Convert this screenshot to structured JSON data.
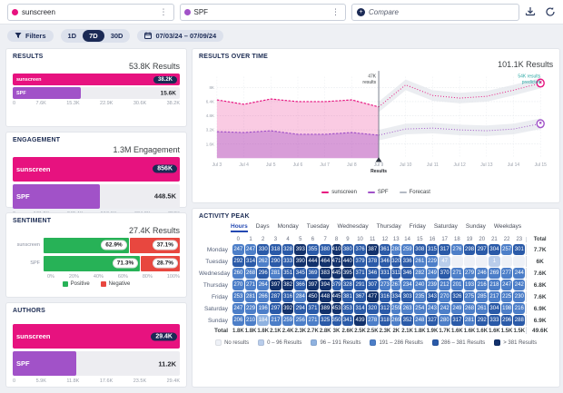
{
  "topbar": {
    "queries": [
      {
        "label": "sunscreen",
        "color": "#e7127f"
      },
      {
        "label": "SPF",
        "color": "#a152c8"
      }
    ],
    "menu_glyph": "⋮",
    "compare": {
      "placeholder": "Compare",
      "icon_glyph": "+"
    }
  },
  "filterbar": {
    "filters_label": "Filters",
    "ranges": [
      "1D",
      "7D",
      "30D"
    ],
    "selected_range": "7D",
    "date_range": "07/03/24 – 07/09/24"
  },
  "results": {
    "title": "RESULTS",
    "total": "53.8K Results",
    "bars": [
      {
        "label": "sunscreen",
        "value": "38.2K",
        "pct": 100,
        "color": "#e7127f",
        "badge": true
      },
      {
        "label": "SPF",
        "value": "15.6K",
        "pct": 41,
        "color": "#a152c8",
        "badge": false
      }
    ],
    "axis": [
      "0",
      "7.6K",
      "15.3K",
      "22.9K",
      "30.6K",
      "38.2K"
    ]
  },
  "engagement": {
    "title": "ENGAGEMENT",
    "total": "1.3M Engagement",
    "bars": [
      {
        "label": "sunscreen",
        "value": "856K",
        "pct": 100,
        "color": "#e7127f",
        "badge": true
      },
      {
        "label": "SPF",
        "value": "448.5K",
        "pct": 52,
        "color": "#a152c8",
        "badge": false
      }
    ],
    "axis": [
      "0",
      "171.2K",
      "342.4K",
      "513.6K",
      "684.8K",
      "856K"
    ]
  },
  "sentiment": {
    "title": "SENTIMENT",
    "total": "27.4K Results",
    "rows": [
      {
        "label": "sunscreen",
        "positive_label": "62.9%",
        "negative_label": "37.1%",
        "positive_pct": 62.9,
        "negative_pct": 37.1
      },
      {
        "label": "SPF",
        "positive_label": "71.3%",
        "negative_label": "28.7%",
        "positive_pct": 71.3,
        "negative_pct": 28.7
      }
    ],
    "axis": [
      "0%",
      "20%",
      "40%",
      "60%",
      "80%",
      "100%"
    ],
    "positive_color": "#27b257",
    "negative_color": "#e8473f",
    "legend": [
      {
        "label": "Positive",
        "color": "#27b257"
      },
      {
        "label": "Negative",
        "color": "#e8473f"
      }
    ]
  },
  "authors": {
    "title": "AUTHORS",
    "total": "",
    "bars": [
      {
        "label": "sunscreen",
        "value": "29.4K",
        "pct": 100,
        "color": "#e7127f",
        "badge": true
      },
      {
        "label": "SPF",
        "value": "11.2K",
        "pct": 38,
        "color": "#a152c8",
        "badge": false
      }
    ],
    "axis": [
      "0",
      "5.9K",
      "11.8K",
      "17.6K",
      "23.5K",
      "29.4K"
    ]
  },
  "results_over_time": {
    "title": "RESULTS OVER TIME",
    "total": "101.1K Results",
    "marker_line1": "47K",
    "marker_line2": "results",
    "marker_axis_label": "Results",
    "predicted_line1": "54K results",
    "predicted_line2": "predicted",
    "predicted_color": "#2ba8a4",
    "yticks": [
      "8K",
      "6.4K",
      "4.8K",
      "3.2K",
      "1.6K"
    ],
    "legend": [
      {
        "label": "sunscreen",
        "color": "#e7127f"
      },
      {
        "label": "SPF",
        "color": "#a152c8"
      },
      {
        "label": "Forecast",
        "color": "#b4bac4"
      }
    ],
    "chart_data": {
      "type": "line",
      "x": [
        "Jul 3",
        "Jul 4",
        "Jul 5",
        "Jul 6",
        "Jul 7",
        "Jul 8",
        "Jul 9",
        "Jul 10",
        "Jul 11",
        "Jul 12",
        "Jul 13",
        "Jul 14",
        "Jul 15"
      ],
      "actual_until_index": 6,
      "ylim": [
        0,
        9000
      ],
      "ytick_values": [
        8000,
        6400,
        4800,
        3200,
        1600
      ],
      "series": [
        {
          "name": "sunscreen",
          "color": "#e7127f",
          "fill": "rgba(231,18,127,0.22)",
          "values": [
            6600,
            6100,
            6700,
            6400,
            6400,
            6600,
            5800,
            8300,
            7100,
            6800,
            7000,
            7700,
            8500
          ]
        },
        {
          "name": "SPF",
          "color": "#a152c8",
          "fill": "rgba(161,82,200,0.38)",
          "values": [
            3000,
            2900,
            3100,
            2700,
            2700,
            2900,
            2600,
            3300,
            3400,
            3200,
            3100,
            3300,
            3900
          ]
        }
      ],
      "forecast_band": 600,
      "forecast_band_color": "#e2e6eb"
    }
  },
  "activity_peak": {
    "title": "ACTIVITY PEAK",
    "tabs": [
      "Hours",
      "Days",
      "Monday",
      "Tuesday",
      "Wednesday",
      "Thursday",
      "Friday",
      "Saturday",
      "Sunday",
      "Weekdays"
    ],
    "selected_tab": "Hours",
    "hour_headers": [
      "0",
      "1",
      "2",
      "3",
      "4",
      "5",
      "6",
      "7",
      "8",
      "9",
      "10",
      "11",
      "12",
      "13",
      "14",
      "15",
      "16",
      "17",
      "18",
      "19",
      "20",
      "21",
      "22",
      "23"
    ],
    "total_header": "Total",
    "rows": [
      {
        "day": "Monday",
        "cells": [
          247,
          247,
          330,
          318,
          328,
          393,
          355,
          380,
          410,
          380,
          376,
          387,
          361,
          280,
          259,
          308,
          315,
          317,
          276,
          298,
          297,
          304,
          257,
          301
        ],
        "total": "7.7K"
      },
      {
        "day": "Tuesday",
        "cells": [
          292,
          314,
          262,
          290,
          333,
          390,
          444,
          464,
          471,
          440,
          379,
          378,
          346,
          320,
          336,
          261,
          229,
          47,
          null,
          null,
          null,
          1,
          null,
          null
        ],
        "total": "6K"
      },
      {
        "day": "Wednesday",
        "cells": [
          260,
          268,
          296,
          281,
          351,
          345,
          369,
          383,
          445,
          395,
          371,
          346,
          331,
          311,
          346,
          282,
          249,
          370,
          271,
          279,
          246,
          269,
          277,
          244
        ],
        "total": "7.6K"
      },
      {
        "day": "Thursday",
        "cells": [
          270,
          271,
          264,
          397,
          382,
          366,
          397,
          394,
          379,
          328,
          291,
          307,
          273,
          267,
          234,
          240,
          239,
          212,
          201,
          193,
          216,
          218,
          247,
          242
        ],
        "total": "6.8K"
      },
      {
        "day": "Friday",
        "cells": [
          253,
          281,
          266,
          287,
          316,
          284,
          450,
          448,
          445,
          381,
          367,
          477,
          316,
          334,
          303,
          235,
          343,
          270,
          326,
          275,
          285,
          217,
          225,
          230
        ],
        "total": "7.6K"
      },
      {
        "day": "Saturday",
        "cells": [
          247,
          229,
          196,
          297,
          392,
          294,
          371,
          389,
          453,
          353,
          314,
          320,
          312,
          259,
          263,
          254,
          243,
          242,
          249,
          268,
          261,
          304,
          198,
          216
        ],
        "total": "6.9K"
      },
      {
        "day": "Sunday",
        "cells": [
          206,
          210,
          184,
          217,
          259,
          256,
          271,
          325,
          350,
          341,
          439,
          278,
          318,
          269,
          352,
          248,
          327,
          280,
          317,
          281,
          292,
          333,
          296,
          288
        ],
        "total": "6.9K"
      }
    ],
    "total_row": {
      "label": "Total",
      "cells": [
        "1.8K",
        "1.8K",
        "1.8K",
        "2.1K",
        "2.4K",
        "2.3K",
        "2.7K",
        "2.8K",
        "3K",
        "2.6K",
        "2.5K",
        "2.5K",
        "2.3K",
        "2K",
        "2.1K",
        "1.8K",
        "1.9K",
        "1.7K",
        "1.6K",
        "1.6K",
        "1.6K",
        "1.6K",
        "1.5K",
        "1.5K"
      ],
      "total": "49.6K"
    },
    "no_results_color": "#eef1f7",
    "bands": [
      {
        "max": 96,
        "color": "#b9cdeb"
      },
      {
        "max": 191,
        "color": "#8fb2e0"
      },
      {
        "max": 286,
        "color": "#4c7ec8"
      },
      {
        "max": 381,
        "color": "#2a5aa8"
      },
      {
        "max": 9999999,
        "color": "#12316b"
      }
    ],
    "legend": [
      {
        "label": "No results",
        "color": "#eef1f7"
      },
      {
        "label": "0 – 96 Results",
        "color": "#b9cdeb"
      },
      {
        "label": "96 – 191 Results",
        "color": "#8fb2e0"
      },
      {
        "label": "191 – 286 Results",
        "color": "#4c7ec8"
      },
      {
        "label": "286 – 381 Results",
        "color": "#2a5aa8"
      },
      {
        "label": "> 381 Results",
        "color": "#12316b"
      }
    ]
  }
}
